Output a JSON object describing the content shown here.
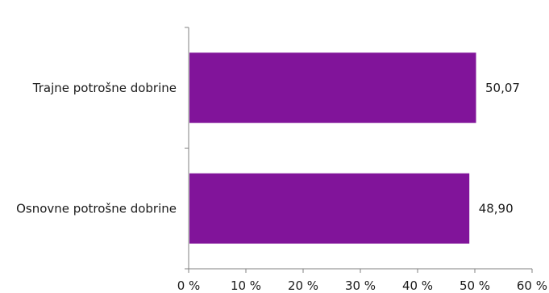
{
  "chart_data": {
    "type": "bar",
    "orientation": "horizontal",
    "categories": [
      "Trajne potrošne dobrine",
      "Osnovne potrošne dobrine"
    ],
    "values": [
      50.07,
      48.9
    ],
    "value_labels": [
      "50,07",
      "48,90"
    ],
    "xlim": [
      0,
      60
    ],
    "x_ticks": [
      0,
      10,
      20,
      30,
      40,
      50,
      60
    ],
    "x_tick_labels": [
      "0 %",
      "10 %",
      "20 %",
      "30 %",
      "40 %",
      "50 %",
      "60 %"
    ],
    "title": "",
    "xlabel": "",
    "ylabel": "",
    "grid": false,
    "bar_color": "#81149a"
  }
}
